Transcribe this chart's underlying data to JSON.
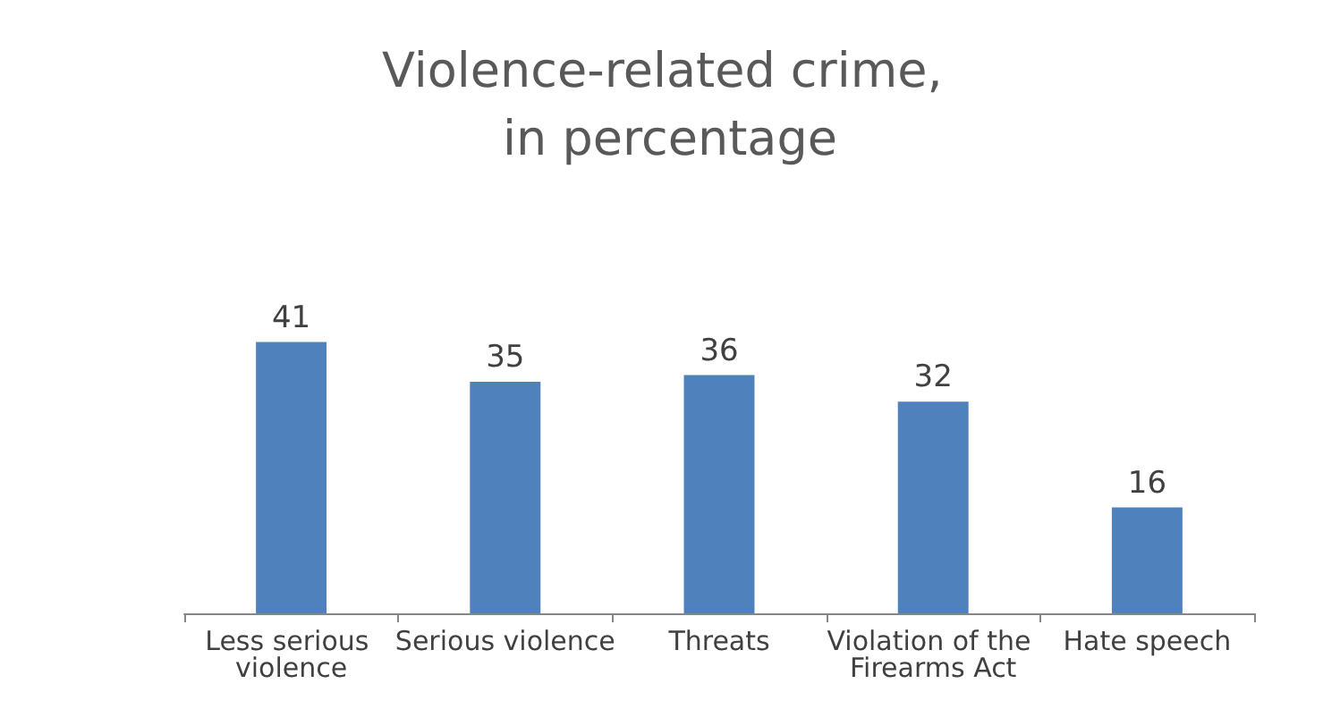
{
  "chart_data": {
    "type": "bar",
    "title": "Violence-related crime, in percentage",
    "categories": [
      "Less serious violence",
      "Serious violence",
      "Threats",
      "Violation of the Firearms Act",
      "Hate speech"
    ],
    "values": [
      41,
      35,
      36,
      32,
      16
    ],
    "color": "#4f81bd",
    "data_labels": true
  }
}
